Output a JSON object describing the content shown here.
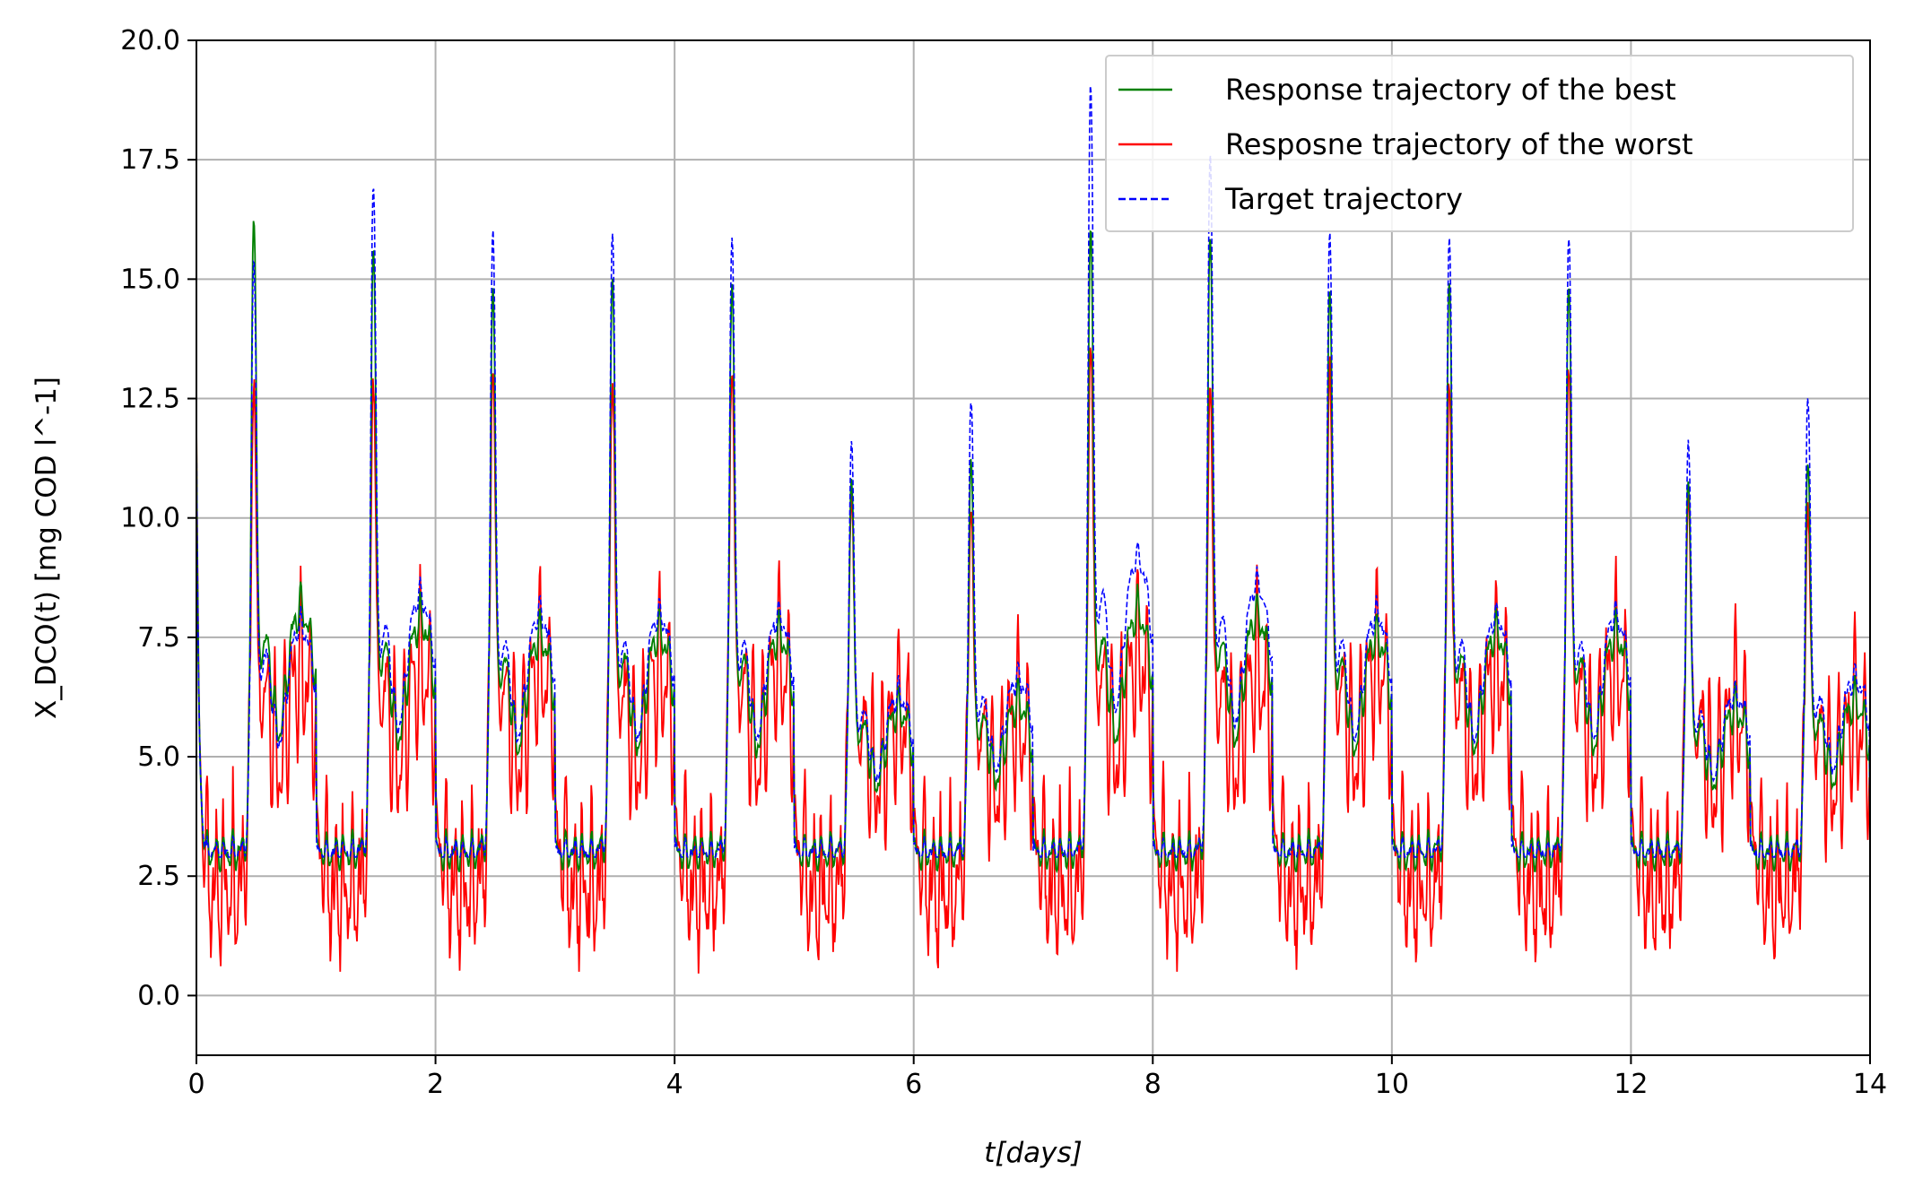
{
  "chart_data": {
    "type": "line",
    "xlabel": "t[days]",
    "ylabel": "X_DCO(t) [mg COD l^-1]",
    "xlim": [
      0,
      14
    ],
    "ylim": [
      -1.25,
      20.0
    ],
    "xticks": [
      0,
      2,
      4,
      6,
      8,
      10,
      12,
      14
    ],
    "xtick_labels": [
      "0",
      "2",
      "4",
      "6",
      "8",
      "10",
      "12",
      "14"
    ],
    "yticks": [
      0.0,
      2.5,
      5.0,
      7.5,
      10.0,
      12.5,
      15.0,
      17.5,
      20.0
    ],
    "ytick_labels": [
      "0.0",
      "2.5",
      "5.0",
      "7.5",
      "10.0",
      "12.5",
      "15.0",
      "17.5",
      "20.0"
    ],
    "grid": true,
    "legend_position": "top-right",
    "daily_peak_times_days": [
      0.48,
      1.48,
      2.48,
      3.48,
      4.48,
      5.48,
      6.48,
      7.48,
      8.48,
      9.48,
      10.48,
      11.48,
      12.48,
      13.48
    ],
    "series": [
      {
        "name": "Response trajectory of the best",
        "color": "#008000",
        "style": "solid",
        "daily_peaks": [
          16.3,
          15.7,
          14.8,
          15.0,
          14.9,
          10.8,
          11.2,
          16.1,
          15.9,
          14.8,
          15.0,
          14.9,
          10.8,
          11.2
        ],
        "baseline_min": 2.6
      },
      {
        "name": "Resposne trajectory of the worst",
        "color": "#ff0000",
        "style": "solid",
        "daily_peaks": [
          12.9,
          12.9,
          13.2,
          12.9,
          13.3,
          10.5,
          10.2,
          13.7,
          12.8,
          13.3,
          12.9,
          13.3,
          10.7,
          10.2
        ],
        "baseline_min": -0.3
      },
      {
        "name": "Target trajectory",
        "color": "#0000ff",
        "style": "dashed",
        "daily_peaks": [
          15.4,
          17.0,
          16.0,
          16.0,
          15.9,
          11.6,
          12.5,
          19.1,
          17.6,
          16.0,
          15.9,
          15.9,
          11.6,
          12.5
        ],
        "baseline_min": 2.9
      }
    ]
  }
}
